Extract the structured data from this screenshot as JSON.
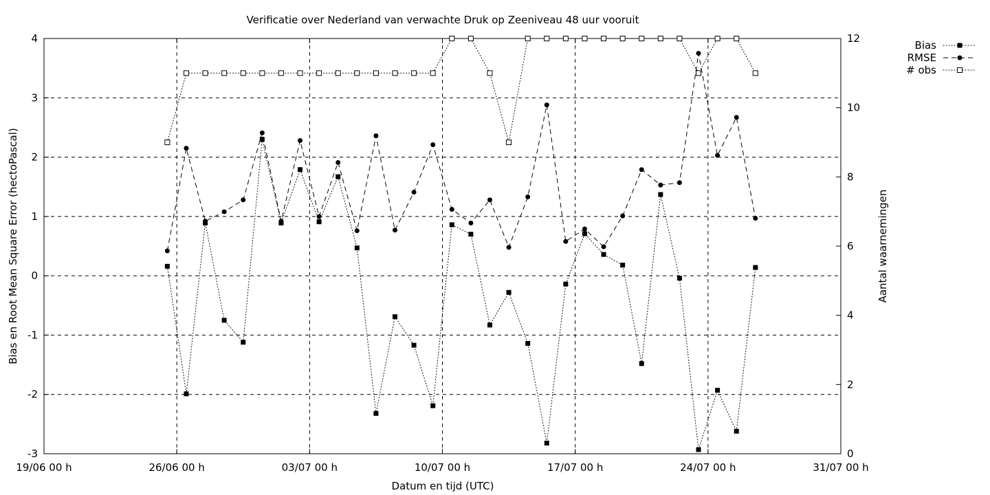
{
  "chart_data": {
    "type": "line",
    "title": "Verificatie over Nederland van verwachte Druk op Zeeniveau 48 uur vooruit",
    "xlabel": "Datum en tijd (UTC)",
    "ylabel": "Bias en Root Mean Square Error (hectoPascal)",
    "y2label": "Aantal waarnemingen",
    "xlim": [
      "2023-06-19T00:00",
      "2023-07-31T00:00"
    ],
    "ylim": [
      -3,
      4
    ],
    "y2lim": [
      0,
      12
    ],
    "x_ticks": [
      "19/06 00 h",
      "26/06 00 h",
      "03/07 00 h",
      "10/07 00 h",
      "17/07 00 h",
      "24/07 00 h",
      "31/07 00 h"
    ],
    "y_ticks": [
      "-3",
      "-2",
      "-1",
      "0",
      "1",
      "2",
      "3",
      "4"
    ],
    "y2_ticks": [
      "0",
      "2",
      "4",
      "6",
      "8",
      "10",
      "12"
    ],
    "grid": true,
    "legend_position": "top-right, outside plot",
    "x": [
      "2023-06-25T12:00",
      "2023-06-26T12:00",
      "2023-06-27T12:00",
      "2023-06-28T12:00",
      "2023-06-29T12:00",
      "2023-06-30T12:00",
      "2023-07-01T12:00",
      "2023-07-02T12:00",
      "2023-07-03T12:00",
      "2023-07-04T12:00",
      "2023-07-05T12:00",
      "2023-07-06T12:00",
      "2023-07-07T12:00",
      "2023-07-08T12:00",
      "2023-07-09T12:00",
      "2023-07-10T12:00",
      "2023-07-11T12:00",
      "2023-07-12T12:00",
      "2023-07-13T12:00",
      "2023-07-14T12:00",
      "2023-07-15T12:00",
      "2023-07-16T12:00",
      "2023-07-17T12:00",
      "2023-07-18T12:00",
      "2023-07-19T12:00",
      "2023-07-20T12:00",
      "2023-07-21T12:00",
      "2023-07-22T12:00",
      "2023-07-23T12:00",
      "2023-07-24T12:00",
      "2023-07-25T12:00",
      "2023-07-26T12:00"
    ],
    "series": [
      {
        "name": "Bias",
        "axis": "y",
        "style": "dotted",
        "marker": "filled-square",
        "values": [
          0.16,
          -1.99,
          0.89,
          -0.75,
          -1.12,
          2.3,
          0.89,
          1.79,
          0.91,
          1.67,
          0.47,
          -2.32,
          -0.69,
          -1.17,
          -2.19,
          0.86,
          0.7,
          -0.83,
          -0.28,
          -1.14,
          -2.82,
          -0.14,
          0.71,
          0.36,
          0.18,
          -1.48,
          1.37,
          -0.04,
          -2.93,
          -1.93,
          -2.62,
          0.14
        ]
      },
      {
        "name": "RMSE",
        "axis": "y",
        "style": "dashed",
        "marker": "filled-circle",
        "values": [
          0.42,
          2.15,
          0.92,
          1.08,
          1.28,
          2.41,
          0.92,
          2.28,
          1.0,
          1.91,
          0.76,
          2.36,
          0.77,
          1.41,
          2.21,
          1.12,
          0.89,
          1.28,
          0.48,
          1.33,
          2.88,
          0.58,
          0.79,
          0.49,
          1.01,
          1.79,
          1.53,
          1.57,
          3.75,
          2.03,
          2.67,
          0.97
        ]
      },
      {
        "name": "# obs",
        "axis": "y2",
        "style": "dotted",
        "marker": "open-square",
        "values": [
          9,
          11,
          11,
          11,
          11,
          11,
          11,
          11,
          11,
          11,
          11,
          11,
          11,
          11,
          11,
          12,
          12,
          11,
          9,
          12,
          12,
          12,
          12,
          12,
          12,
          12,
          12,
          12,
          11,
          12,
          12,
          11
        ]
      }
    ],
    "colors": {
      "line": "#000000",
      "background": "#ffffff"
    }
  }
}
